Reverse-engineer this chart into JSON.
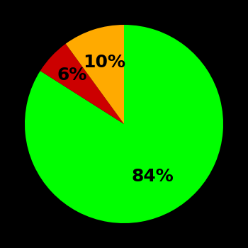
{
  "slices": [
    84,
    6,
    10
  ],
  "labels": [
    "84%",
    "6%",
    "10%"
  ],
  "colors": [
    "#00ff00",
    "#cc0000",
    "#ffaa00"
  ],
  "background_color": "#000000",
  "text_color": "#000000",
  "label_fontsize": 18,
  "label_fontweight": "bold",
  "startangle": 90,
  "counterclock": false,
  "label_radii": [
    0.6,
    0.72,
    0.65
  ],
  "figsize": [
    3.5,
    3.5
  ],
  "dpi": 100
}
